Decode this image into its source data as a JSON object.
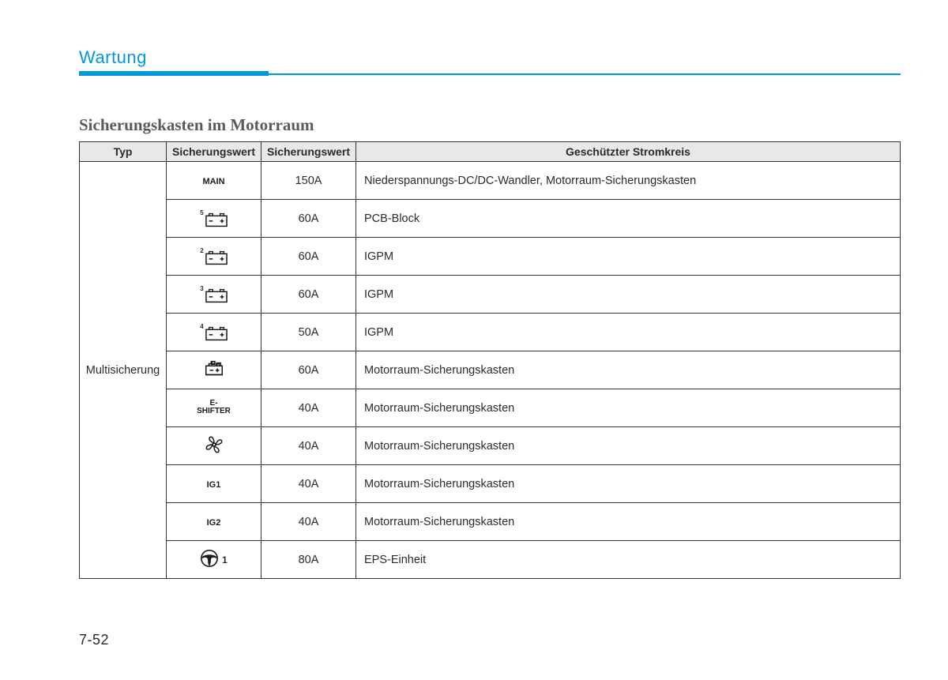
{
  "header": {
    "title": "Wartung",
    "accent_color": "#0098d9"
  },
  "section_title": "Sicherungskasten im Motorraum",
  "page_number": "7-52",
  "table": {
    "columns": [
      "Typ",
      "Sicherungswert",
      "Sicherungswert",
      "Geschützter Stromkreis"
    ],
    "type_label": "Multisicherung",
    "header_bg": "#e8e8e8",
    "border_color": "#313131",
    "rows": [
      {
        "icon": "text",
        "icon_text": "MAIN",
        "sup": "",
        "value": "150A",
        "desc": "Niederspannungs-DC/DC-Wandler, Motorraum-Sicherungskasten"
      },
      {
        "icon": "battery",
        "icon_text": "",
        "sup": "5",
        "value": "60A",
        "desc": "PCB-Block"
      },
      {
        "icon": "battery",
        "icon_text": "",
        "sup": "2",
        "value": "60A",
        "desc": "IGPM"
      },
      {
        "icon": "battery",
        "icon_text": "",
        "sup": "3",
        "value": "60A",
        "desc": "IGPM"
      },
      {
        "icon": "battery",
        "icon_text": "",
        "sup": "4",
        "value": "50A",
        "desc": "IGPM"
      },
      {
        "icon": "module",
        "icon_text": "",
        "sup": "",
        "value": "60A",
        "desc": "Motorraum-Sicherungskasten"
      },
      {
        "icon": "text2",
        "icon_text": "E-\nSHIFTER",
        "sup": "",
        "value": "40A",
        "desc": "Motorraum-Sicherungskasten"
      },
      {
        "icon": "fan",
        "icon_text": "",
        "sup": "",
        "value": "40A",
        "desc": "Motorraum-Sicherungskasten"
      },
      {
        "icon": "text",
        "icon_text": "IG1",
        "sup": "",
        "value": "40A",
        "desc": "Motorraum-Sicherungskasten"
      },
      {
        "icon": "text",
        "icon_text": "IG2",
        "sup": "",
        "value": "40A",
        "desc": "Motorraum-Sicherungskasten"
      },
      {
        "icon": "steering",
        "icon_text": "",
        "sup": "1",
        "value": "80A",
        "desc": "EPS-Einheit"
      }
    ]
  }
}
